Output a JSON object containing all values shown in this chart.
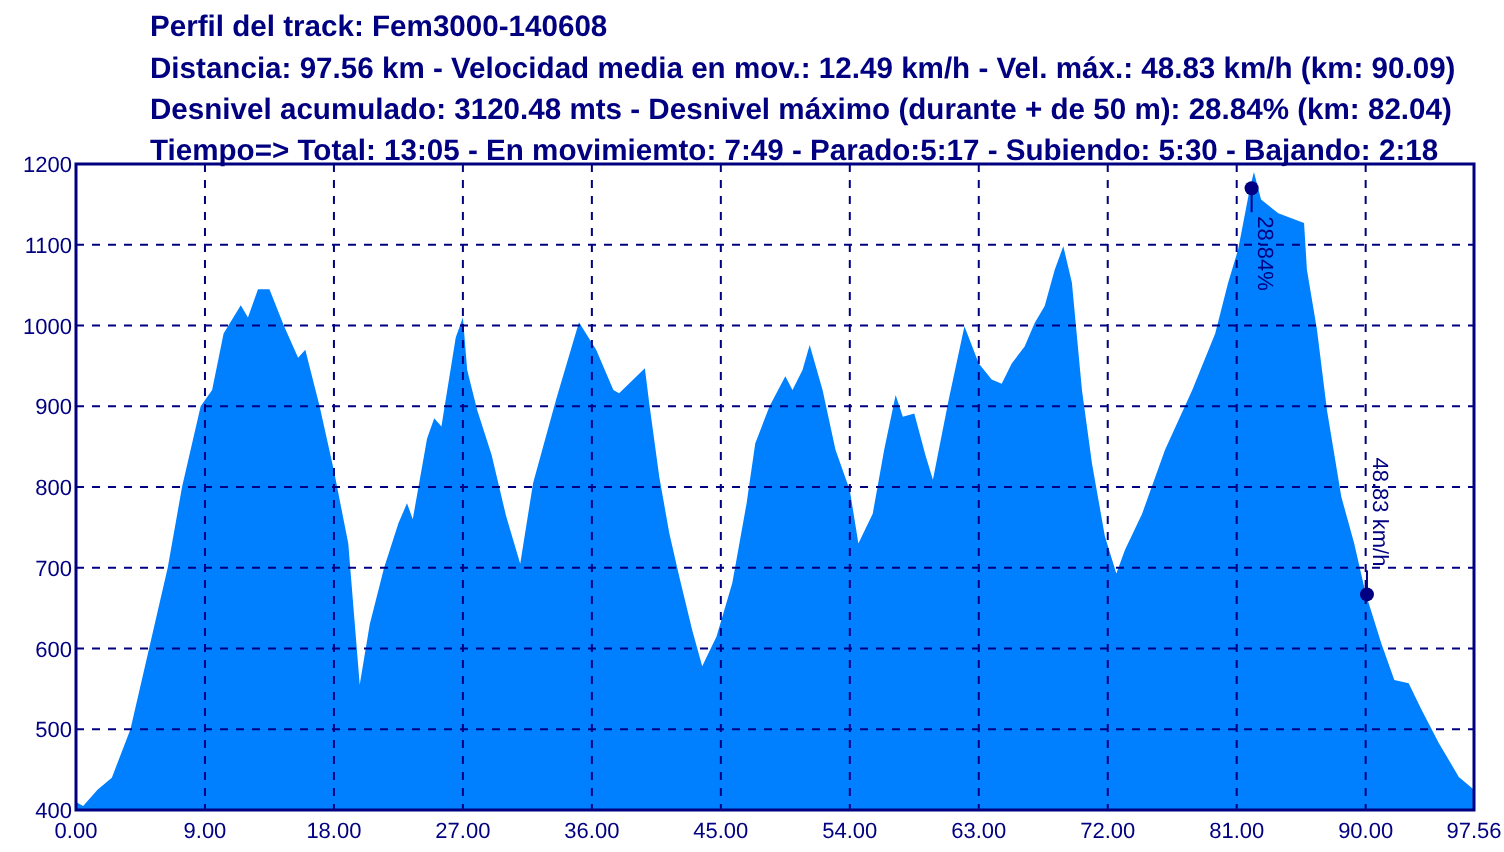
{
  "chart_data": {
    "type": "area",
    "title": "Perfil del track: Fem3000-140608",
    "subtitle": "Distancia: 97.56 km - Velocidad media en mov.: 12.49 km/h - Vel. máx.: 48.83 km/h (km: 90.09)\nDesnivel acumulado: 3120.48 mts - Desnivel máximo (durante + de 50 m): 28.84% (km: 82.04)\nTiempo=> Total: 13:05 - En movimiemto: 7:49 - Parado:5:17 - Subiendo: 5:30 - Bajando: 2:18",
    "series": [
      {
        "color": "#0080ff",
        "x": [
          0,
          0.5,
          1.5,
          2.5,
          3.8,
          5.1,
          6.4,
          7.4,
          8.7,
          9.5,
          10.3,
          11.5,
          12,
          12.7,
          13.5,
          14.5,
          15.5,
          16,
          17,
          18,
          19,
          19.8,
          20.5,
          21.5,
          22.5,
          23.1,
          23.5,
          24.5,
          25,
          25.5,
          26.5,
          27,
          27.3,
          28,
          29,
          30,
          31,
          31.9,
          33.5,
          35.1,
          36.3,
          37.5,
          37.9,
          39.7,
          40,
          40.7,
          41.4,
          42.1,
          43,
          43.7,
          44.7,
          45.8,
          46.8,
          47.4,
          48.4,
          49.5,
          50,
          50.7,
          51.2,
          52.1,
          53,
          54,
          54.6,
          55.6,
          56.4,
          57.2,
          57.7,
          58.5,
          59.3,
          59.8,
          60.9,
          62,
          63,
          63.9,
          64.6,
          65.3,
          66.2,
          66.9,
          67.6,
          68.3,
          68.9,
          69.5,
          70.2,
          70.9,
          71.8,
          72.6,
          73.2,
          74.4,
          76,
          77.9,
          79.5,
          80.4,
          81.1,
          81.9,
          82.2,
          82.7,
          83.9,
          85.7,
          85.9,
          86.6,
          87.3,
          88.3,
          89.2,
          90,
          91.1,
          92,
          93,
          93.9,
          95.1,
          96.5,
          97.56
        ],
        "values": [
          410,
          405,
          425,
          440,
          500,
          600,
          700,
          800,
          900,
          920,
          990,
          1025,
          1010,
          1045,
          1045,
          1000,
          960,
          970,
          900,
          820,
          730,
          555,
          630,
          700,
          755,
          780,
          760,
          860,
          885,
          875,
          985,
          1010,
          945,
          895,
          840,
          765,
          705,
          805,
          908,
          1004,
          970,
          920,
          916,
          947,
          904,
          813,
          743,
          689,
          623,
          578,
          615,
          681,
          780,
          854,
          900,
          937,
          920,
          945,
          976,
          920,
          846,
          796,
          730,
          767,
          846,
          914,
          887,
          891,
          838,
          809,
          908,
          999,
          953,
          933,
          928,
          953,
          974,
          1003,
          1024,
          1069,
          1098,
          1053,
          920,
          829,
          739,
          693,
          722,
          767,
          846,
          920,
          990,
          1053,
          1094,
          1168,
          1190,
          1156,
          1139,
          1127,
          1069,
          995,
          895,
          788,
          730,
          668,
          606,
          561,
          557,
          524,
          483,
          441,
          425
        ]
      }
    ],
    "annotations": [
      {
        "text": "28.84%",
        "x": 82.04,
        "y": 1170
      },
      {
        "text": "48.83 km/h",
        "x": 90.09,
        "y": 667
      }
    ],
    "xlim": [
      0,
      97.56
    ],
    "ylim": [
      400,
      1200
    ],
    "xticks": [
      {
        "value": 0,
        "label": "0.00"
      },
      {
        "value": 9,
        "label": "9.00"
      },
      {
        "value": 18,
        "label": "18.00"
      },
      {
        "value": 27,
        "label": "27.00"
      },
      {
        "value": 36,
        "label": "36.00"
      },
      {
        "value": 45,
        "label": "45.00"
      },
      {
        "value": 54,
        "label": "54.00"
      },
      {
        "value": 63,
        "label": "63.00"
      },
      {
        "value": 72,
        "label": "72.00"
      },
      {
        "value": 81,
        "label": "81.00"
      },
      {
        "value": 90,
        "label": "90.00"
      },
      {
        "value": 97.56,
        "label": "97.56"
      }
    ],
    "yticks": [
      400,
      500,
      600,
      700,
      800,
      900,
      1000,
      1100,
      1200
    ],
    "grid": true
  }
}
